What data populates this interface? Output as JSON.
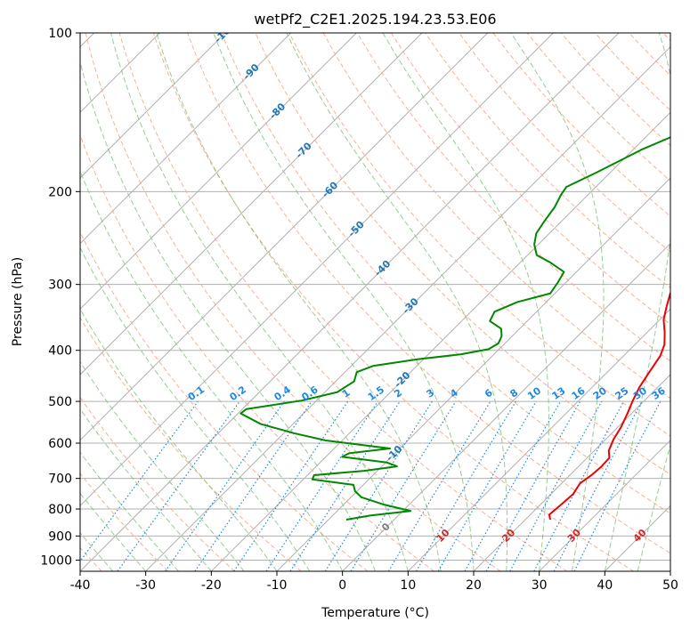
{
  "chart_data": {
    "type": "line",
    "title": "wetPf2_C2E1.2025.194.23.53.E06",
    "xlabel": "Temperature (°C)",
    "ylabel": "Pressure (hPa)",
    "xlim": [
      -40,
      50
    ],
    "ylim": [
      1050,
      100
    ],
    "y_scale": "log",
    "grid": true,
    "xticks": [
      -40,
      -30,
      -20,
      -10,
      0,
      10,
      20,
      30,
      40,
      50
    ],
    "yticks": [
      100,
      200,
      300,
      400,
      500,
      600,
      700,
      800,
      900,
      1000
    ],
    "skew_degrees": 45,
    "series": [
      {
        "role": "temperature",
        "color": "#ee0000",
        "points": [
          [
            23.8,
            838
          ],
          [
            22.9,
            820
          ],
          [
            23.2,
            780
          ],
          [
            23.4,
            750
          ],
          [
            22.8,
            715
          ],
          [
            23.3,
            690
          ],
          [
            23.5,
            665
          ],
          [
            23.4,
            640
          ],
          [
            22.2,
            620
          ],
          [
            21.2,
            590
          ],
          [
            20.5,
            560
          ],
          [
            19.3,
            525
          ],
          [
            18.3,
            500
          ],
          [
            17.2,
            470
          ],
          [
            16.4,
            440
          ],
          [
            15.6,
            410
          ],
          [
            14.5,
            390
          ],
          [
            12.7,
            370
          ],
          [
            10.6,
            350
          ],
          [
            9.0,
            330
          ],
          [
            7.6,
            312
          ],
          [
            6.8,
            297
          ],
          [
            6.0,
            285
          ],
          [
            4.8,
            275
          ],
          [
            4.2,
            262
          ],
          [
            3.4,
            250
          ],
          [
            2.6,
            237
          ],
          [
            1.6,
            223
          ],
          [
            0.6,
            210
          ],
          [
            -0.4,
            197
          ],
          [
            -1.4,
            184
          ],
          [
            -2.3,
            172
          ],
          [
            -3.2,
            160
          ],
          [
            -4.2,
            147
          ],
          [
            -5.1,
            136
          ],
          [
            -5.7,
            129
          ],
          [
            -5.8,
            124
          ],
          [
            -5.4,
            119
          ],
          [
            -4.5,
            115
          ],
          [
            -2.6,
            110
          ],
          [
            -0.6,
            107
          ],
          [
            1.5,
            104
          ],
          [
            2.7,
            100
          ]
        ]
      },
      {
        "role": "dewpoint",
        "color": "#008800",
        "points": [
          [
            -7.3,
            838
          ],
          [
            -4.3,
            823
          ],
          [
            1.2,
            807
          ],
          [
            -3.8,
            785
          ],
          [
            -8.4,
            760
          ],
          [
            -10.3,
            740
          ],
          [
            -11.5,
            720
          ],
          [
            -18.6,
            703
          ],
          [
            -19.0,
            690
          ],
          [
            -12.0,
            677
          ],
          [
            -7.7,
            664
          ],
          [
            -9.8,
            653
          ],
          [
            -17.5,
            637
          ],
          [
            -17.0,
            627
          ],
          [
            -11.5,
            614
          ],
          [
            -22.5,
            593
          ],
          [
            -28.3,
            575
          ],
          [
            -34.9,
            552
          ],
          [
            -39.6,
            527
          ],
          [
            -39.4,
            517
          ],
          [
            -32.2,
            498
          ],
          [
            -28.1,
            480
          ],
          [
            -27.2,
            458
          ],
          [
            -28.2,
            440
          ],
          [
            -26.6,
            428
          ],
          [
            -20.9,
            416
          ],
          [
            -15.0,
            407
          ],
          [
            -11.6,
            398
          ],
          [
            -11.0,
            388
          ],
          [
            -11.6,
            376
          ],
          [
            -12.8,
            364
          ],
          [
            -15.7,
            352
          ],
          [
            -16.4,
            338
          ],
          [
            -14.4,
            324
          ],
          [
            -10.7,
            312
          ],
          [
            -11.2,
            298
          ],
          [
            -11.9,
            284
          ],
          [
            -15.6,
            272
          ],
          [
            -18.6,
            264
          ],
          [
            -20.6,
            252
          ],
          [
            -22.0,
            240
          ],
          [
            -22.6,
            228
          ],
          [
            -23.2,
            214
          ],
          [
            -24.1,
            203
          ],
          [
            -24.5,
            196
          ],
          [
            -22.1,
            184
          ],
          [
            -18.6,
            166
          ],
          [
            -13.5,
            149
          ],
          [
            -10.7,
            133
          ],
          [
            -11.6,
            123
          ],
          [
            -15.5,
            115
          ],
          [
            -19.9,
            111
          ],
          [
            -19.9,
            107
          ],
          [
            -13.9,
            101
          ],
          [
            -12.6,
            100
          ]
        ]
      }
    ],
    "isotherm_labels": [
      "-100",
      "-90",
      "-80",
      "-70",
      "-60",
      "-50",
      "-40",
      "-30",
      "-20",
      "-10",
      "0",
      "10",
      "20",
      "30",
      "40"
    ],
    "mixing_ratio_labels": [
      "0.1",
      "0.2",
      "0.4",
      "0.6",
      "1",
      "1.5",
      "2",
      "3",
      "4",
      "6",
      "8",
      "10",
      "13",
      "16",
      "20",
      "25",
      "30",
      "36"
    ],
    "colors": {
      "temperature": "#ee0000",
      "dewpoint": "#008800",
      "isotherm_cold": "#1f77b4",
      "isotherm_warm": "#d62728",
      "isotherm_zero": "#7f7f7f",
      "mixing_ratio": "#1e88e5",
      "dry_adiabat": "#f4a582",
      "moist_adiabat": "#7fbf7b",
      "grid": "#b0b0b0"
    }
  }
}
